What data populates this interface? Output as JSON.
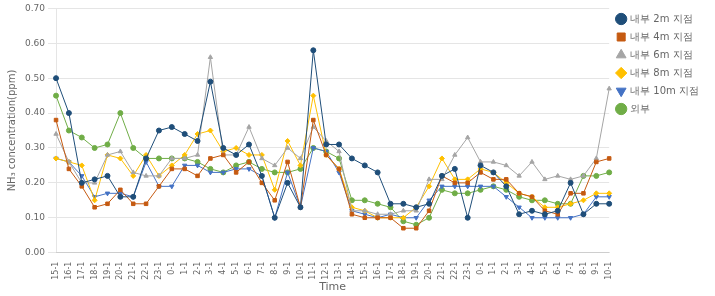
{
  "chart_data": {
    "type": "line",
    "xlabel": "Time",
    "ylabel": "NH₃ concentration(ppm)",
    "categories": [
      "15-1",
      "16-1",
      "17-1",
      "18-1",
      "19-1",
      "20-1",
      "21-1",
      "22-1",
      "23-1",
      "0-1",
      "1-1",
      "2-1",
      "3-1",
      "4-1",
      "5-1",
      "6-1",
      "7-1",
      "8-1",
      "9-1",
      "10-1",
      "11-1",
      "12-1",
      "13-1",
      "14-1",
      "15-1",
      "16-1",
      "17-1",
      "18-1",
      "19-1",
      "20-1",
      "21-1",
      "22-1",
      "23-1",
      "0-1",
      "1-1",
      "2-1",
      "3-1",
      "4-1",
      "5-1",
      "6-1",
      "7-1",
      "8-1",
      "9-1",
      "10-1"
    ],
    "series": [
      {
        "name": "내부 2m 지점",
        "color": "#1F4E79",
        "marker": "circle",
        "values": [
          0.5,
          0.4,
          0.2,
          0.21,
          0.22,
          0.16,
          0.16,
          0.27,
          0.35,
          0.36,
          0.34,
          0.32,
          0.49,
          0.3,
          0.28,
          0.31,
          0.22,
          0.1,
          0.2,
          0.13,
          0.58,
          0.31,
          0.31,
          0.27,
          0.25,
          0.23,
          0.14,
          0.14,
          0.13,
          0.14,
          0.22,
          0.24,
          0.1,
          0.25,
          0.23,
          0.19,
          0.11,
          0.12,
          0.11,
          0.12,
          0.2,
          0.11,
          0.14,
          0.14
        ]
      },
      {
        "name": "내부 4m 지점",
        "color": "#C55A11",
        "marker": "square",
        "values": [
          0.38,
          0.24,
          0.19,
          0.13,
          0.14,
          0.18,
          0.14,
          0.14,
          0.19,
          0.24,
          0.24,
          0.22,
          0.27,
          0.28,
          0.23,
          0.26,
          0.2,
          0.15,
          0.26,
          0.13,
          0.38,
          0.28,
          0.24,
          0.11,
          0.1,
          0.1,
          0.1,
          0.07,
          0.07,
          0.12,
          0.22,
          0.2,
          0.2,
          0.23,
          0.21,
          0.21,
          0.17,
          0.16,
          0.12,
          0.11,
          0.17,
          0.17,
          0.26,
          0.27
        ]
      },
      {
        "name": "내부 6m 지점",
        "color": "#A5A5A5",
        "marker": "triangle",
        "values": [
          0.34,
          0.26,
          0.2,
          0.2,
          0.28,
          0.29,
          0.23,
          0.22,
          0.22,
          0.27,
          0.27,
          0.28,
          0.56,
          0.28,
          0.28,
          0.36,
          0.27,
          0.25,
          0.3,
          0.27,
          0.36,
          0.32,
          0.29,
          0.12,
          0.12,
          0.11,
          0.11,
          0.12,
          0.12,
          0.21,
          0.21,
          0.28,
          0.33,
          0.26,
          0.26,
          0.25,
          0.22,
          0.26,
          0.21,
          0.22,
          0.21,
          0.22,
          0.27,
          0.47
        ]
      },
      {
        "name": "내부 8m 지점",
        "color": "#FFC000",
        "marker": "diamond",
        "values": [
          0.27,
          0.26,
          0.25,
          0.15,
          0.28,
          0.27,
          0.22,
          0.28,
          0.22,
          0.25,
          0.28,
          0.34,
          0.35,
          0.29,
          0.3,
          0.28,
          0.28,
          0.18,
          0.32,
          0.25,
          0.45,
          0.28,
          0.24,
          0.13,
          0.12,
          0.1,
          0.1,
          0.1,
          0.13,
          0.19,
          0.27,
          0.21,
          0.21,
          0.24,
          0.23,
          0.2,
          0.17,
          0.16,
          0.13,
          0.13,
          0.14,
          0.15,
          0.17,
          0.17
        ]
      },
      {
        "name": "내부 10m 지점",
        "color": "#4472C4",
        "marker": "triangle_down",
        "values": [
          0.27,
          0.26,
          0.22,
          0.16,
          0.17,
          0.17,
          0.16,
          0.26,
          0.19,
          0.19,
          0.25,
          0.25,
          0.23,
          0.23,
          0.24,
          0.24,
          0.22,
          0.1,
          0.23,
          0.13,
          0.3,
          0.29,
          0.23,
          0.12,
          0.11,
          0.1,
          0.11,
          0.1,
          0.1,
          0.15,
          0.19,
          0.19,
          0.19,
          0.19,
          0.19,
          0.16,
          0.13,
          0.1,
          0.1,
          0.1,
          0.1,
          0.11,
          0.16,
          0.16
        ]
      },
      {
        "name": "외부",
        "color": "#70AD47",
        "marker": "circle",
        "values": [
          0.45,
          0.35,
          0.33,
          0.3,
          0.31,
          0.4,
          0.3,
          0.27,
          0.27,
          0.27,
          0.27,
          0.26,
          0.24,
          0.23,
          0.25,
          0.26,
          0.24,
          0.23,
          0.23,
          0.24,
          0.3,
          0.29,
          0.27,
          0.15,
          0.15,
          0.14,
          0.13,
          0.09,
          0.08,
          0.1,
          0.18,
          0.17,
          0.17,
          0.18,
          0.19,
          0.18,
          0.16,
          0.15,
          0.15,
          0.14,
          0.14,
          0.22,
          0.22,
          0.23
        ]
      }
    ],
    "ylim": [
      0.0,
      0.7
    ],
    "yticks": [
      {
        "value": 0.0,
        "label": "0.00"
      },
      {
        "value": 0.1,
        "label": "0.10"
      },
      {
        "value": 0.2,
        "label": "0.20"
      },
      {
        "value": 0.3,
        "label": "0.30"
      },
      {
        "value": 0.4,
        "label": "0.40"
      },
      {
        "value": 0.5,
        "label": "0.50"
      },
      {
        "value": 0.6,
        "label": "0.60"
      },
      {
        "value": 0.7,
        "label": "0.70"
      }
    ],
    "grid": true,
    "legend": "upper right"
  }
}
